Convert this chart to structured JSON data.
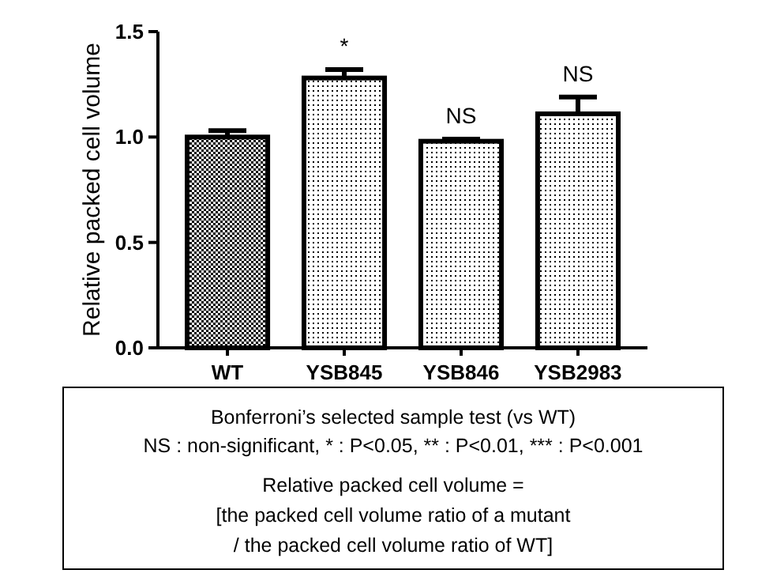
{
  "chart_data": {
    "type": "bar",
    "ylabel": "Relative packed cell volume",
    "categories": [
      "WT",
      "YSB845",
      "YSB846",
      "YSB2983"
    ],
    "values": [
      1.0,
      1.28,
      0.98,
      1.11
    ],
    "errors": [
      0.03,
      0.04,
      0.01,
      0.08
    ],
    "colors": [
      "#000000",
      "#000000",
      "#000000",
      "#000000"
    ],
    "ylim": [
      0,
      1.5
    ],
    "yticks": [
      {
        "value": 0,
        "label": "0.0"
      },
      {
        "value": 0.5,
        "label": "0.5"
      },
      {
        "value": 1,
        "label": "1.0"
      },
      {
        "value": 1.5,
        "label": "1.5"
      }
    ],
    "grid": false,
    "annotations": [
      "*",
      "NS",
      "NS",
      "Bonferroni’s selected sample test (vs WT)",
      "NS : non-significant, * : P<0.05, ** : P<0.01, *** : P<0.001",
      "Relative packed cell volume =",
      "[the packed cell volume ratio of a mutant",
      "/ the packed cell volume ratio of WT]"
    ]
  }
}
